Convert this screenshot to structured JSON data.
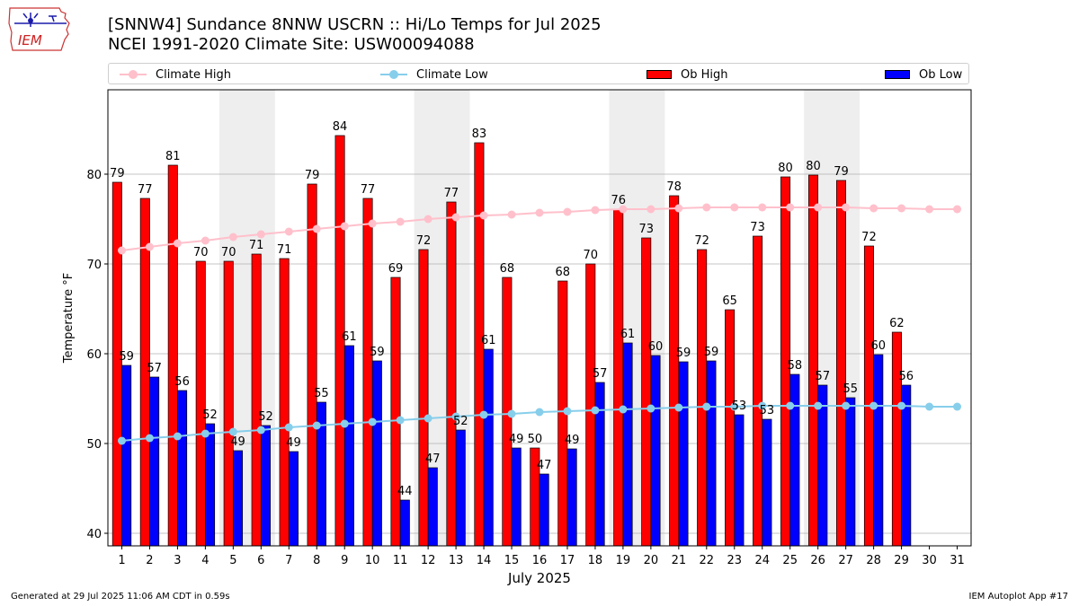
{
  "header": {
    "title_line1": "[SNNW4] Sundance 8NNW USCRN :: Hi/Lo Temps for Jul 2025",
    "title_line2": "NCEI 1991-2020 Climate Site: USW00094088",
    "logo_text": "IEM"
  },
  "footer": {
    "generated": "Generated at 29 Jul 2025 11:06 AM CDT in 0.59s",
    "app": "IEM Autoplot App #17"
  },
  "colors": {
    "ob_high": "#ff0000",
    "ob_low": "#0000ff",
    "climate_high": "#ffc0cb",
    "climate_low": "#87ceeb",
    "weekend_shade": "#eeeeee",
    "grid": "#b0b0b0"
  },
  "legend": {
    "climate_high": "Climate High",
    "climate_low": "Climate Low",
    "ob_high": "Ob High",
    "ob_low": "Ob Low"
  },
  "chart_data": {
    "type": "bar",
    "title": "[SNNW4] Sundance 8NNW USCRN :: Hi/Lo Temps for Jul 2025",
    "xlabel": "July 2025",
    "ylabel": "Temperature °F",
    "ylim": [
      38.6,
      89.4
    ],
    "yticks": [
      40,
      50,
      60,
      70,
      80
    ],
    "grid": "horizontal",
    "legend_position": "top",
    "categories": [
      1,
      2,
      3,
      4,
      5,
      6,
      7,
      8,
      9,
      10,
      11,
      12,
      13,
      14,
      15,
      16,
      17,
      18,
      19,
      20,
      21,
      22,
      23,
      24,
      25,
      26,
      27,
      28,
      29,
      30,
      31
    ],
    "weekend_days": [
      5,
      6,
      12,
      13,
      19,
      20,
      26,
      27
    ],
    "series": [
      {
        "name": "Ob High",
        "type": "bar",
        "values": [
          79.1,
          77.3,
          81.0,
          70.3,
          70.3,
          71.1,
          70.6,
          78.9,
          84.3,
          77.3,
          68.5,
          71.6,
          76.9,
          83.5,
          68.5,
          49.5,
          68.1,
          70.0,
          76.1,
          72.9,
          77.6,
          71.6,
          64.9,
          73.1,
          79.7,
          79.9,
          79.3,
          72.0,
          62.4,
          null,
          null
        ],
        "labels": [
          "79",
          "77",
          "81",
          "70",
          "70",
          "71",
          "71",
          "79",
          "84",
          "77",
          "69",
          "72",
          "77",
          "83",
          "68",
          "50",
          "68",
          "70",
          "76",
          "73",
          "78",
          "72",
          "65",
          "73",
          "80",
          "80",
          "79",
          "72",
          "62",
          "",
          ""
        ]
      },
      {
        "name": "Ob Low",
        "type": "bar",
        "values": [
          58.7,
          57.4,
          55.9,
          52.2,
          49.2,
          52.0,
          49.1,
          54.6,
          60.9,
          59.2,
          43.7,
          47.3,
          51.5,
          60.5,
          49.5,
          46.6,
          49.4,
          56.8,
          61.2,
          59.8,
          59.1,
          59.2,
          53.2,
          52.7,
          57.7,
          56.5,
          55.1,
          59.9,
          56.5,
          null,
          null
        ],
        "labels": [
          "59",
          "57",
          "56",
          "52",
          "49",
          "52",
          "49",
          "55",
          "61",
          "59",
          "44",
          "47",
          "52",
          "61",
          "49",
          "47",
          "49",
          "57",
          "61",
          "60",
          "59",
          "59",
          "53",
          "53",
          "58",
          "57",
          "55",
          "60",
          "56",
          "",
          ""
        ]
      },
      {
        "name": "Climate High",
        "type": "line",
        "values": [
          71.5,
          71.9,
          72.3,
          72.6,
          73.0,
          73.3,
          73.6,
          73.9,
          74.2,
          74.5,
          74.7,
          75.0,
          75.2,
          75.4,
          75.5,
          75.7,
          75.8,
          76.0,
          76.1,
          76.1,
          76.2,
          76.3,
          76.3,
          76.3,
          76.3,
          76.3,
          76.3,
          76.2,
          76.2,
          76.1,
          76.1
        ]
      },
      {
        "name": "Climate Low",
        "type": "line",
        "values": [
          50.3,
          50.6,
          50.8,
          51.1,
          51.3,
          51.5,
          51.8,
          52.0,
          52.2,
          52.4,
          52.6,
          52.8,
          53.0,
          53.2,
          53.3,
          53.5,
          53.6,
          53.7,
          53.8,
          53.9,
          54.0,
          54.1,
          54.1,
          54.2,
          54.2,
          54.2,
          54.2,
          54.2,
          54.2,
          54.1,
          54.1
        ]
      }
    ]
  }
}
